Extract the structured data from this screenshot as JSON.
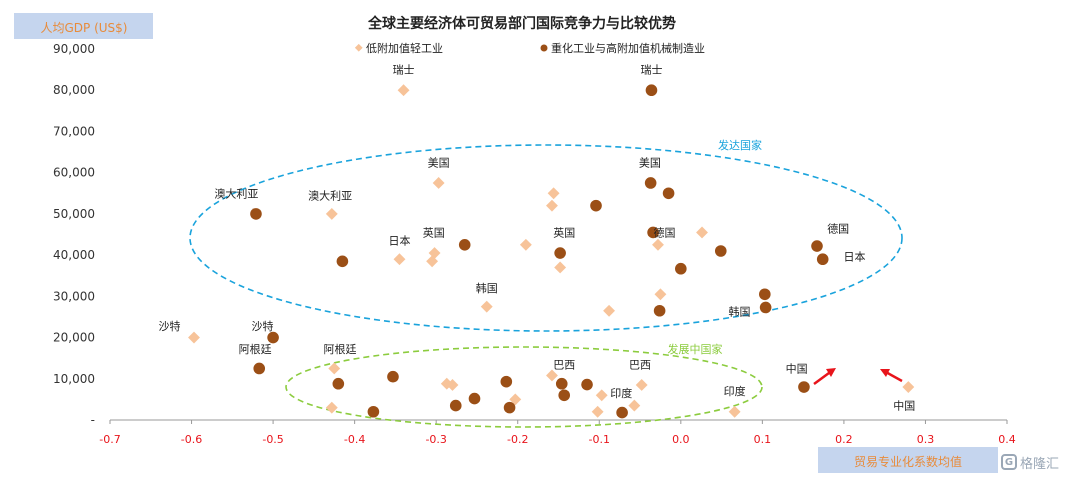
{
  "chart_data": {
    "type": "scatter",
    "title": "全球主要经济体可贸易部门国际竞争力与比较优势",
    "ylabel": "人均GDP (US$)",
    "xlabel": "贸易专业化系数均值",
    "xlim": [
      -0.7,
      0.4
    ],
    "ylim": [
      0,
      90000
    ],
    "x_ticks": [
      "-0.7",
      "-0.6",
      "-0.5",
      "-0.4",
      "-0.3",
      "-0.2",
      "-0.1",
      "0.0",
      "0.1",
      "0.2",
      "0.3",
      "0.4"
    ],
    "y_ticks": [
      "-",
      "10,000",
      "20,000",
      "30,000",
      "40,000",
      "50,000",
      "60,000",
      "70,000",
      "80,000",
      "90,000"
    ],
    "grid": false,
    "legend_position": "top-center",
    "colors": {
      "light": "#f7c399",
      "heavy": "#9b4f16",
      "developed": "#1aa3dc",
      "developing": "#8ccc3e",
      "arrow": "#e8141b",
      "x_tick": "#e8141b",
      "label_accent": "#e88b3a"
    },
    "series": [
      {
        "name": "低附加值轻工业",
        "marker": "diamond",
        "points": [
          {
            "x": -0.34,
            "y": 80000
          },
          {
            "x": -0.297,
            "y": 57500
          },
          {
            "x": -0.428,
            "y": 50000
          },
          {
            "x": -0.345,
            "y": 39000
          },
          {
            "x": -0.302,
            "y": 40500
          },
          {
            "x": -0.305,
            "y": 38500
          },
          {
            "x": -0.19,
            "y": 42500
          },
          {
            "x": -0.156,
            "y": 55000
          },
          {
            "x": -0.158,
            "y": 52000
          },
          {
            "x": -0.148,
            "y": 37000
          },
          {
            "x": -0.028,
            "y": 42500
          },
          {
            "x": 0.026,
            "y": 45500
          },
          {
            "x": -0.025,
            "y": 30500
          },
          {
            "x": -0.088,
            "y": 26500
          },
          {
            "x": -0.238,
            "y": 27500
          },
          {
            "x": -0.597,
            "y": 20000
          },
          {
            "x": -0.425,
            "y": 12500
          },
          {
            "x": -0.428,
            "y": 3000
          },
          {
            "x": -0.287,
            "y": 8800
          },
          {
            "x": -0.28,
            "y": 8500
          },
          {
            "x": -0.203,
            "y": 5000
          },
          {
            "x": -0.158,
            "y": 10800
          },
          {
            "x": -0.102,
            "y": 2000
          },
          {
            "x": -0.097,
            "y": 6000
          },
          {
            "x": -0.057,
            "y": 3500
          },
          {
            "x": -0.048,
            "y": 8500
          },
          {
            "x": 0.066,
            "y": 2000
          },
          {
            "x": 0.279,
            "y": 8000
          }
        ]
      },
      {
        "name": "重化工业与高附加值机械制造业",
        "marker": "circle",
        "points": [
          {
            "x": -0.036,
            "y": 80000
          },
          {
            "x": -0.037,
            "y": 57500
          },
          {
            "x": -0.015,
            "y": 55000
          },
          {
            "x": -0.104,
            "y": 52000
          },
          {
            "x": -0.521,
            "y": 50000
          },
          {
            "x": -0.034,
            "y": 45500
          },
          {
            "x": -0.265,
            "y": 42500
          },
          {
            "x": 0.049,
            "y": 41000
          },
          {
            "x": -0.148,
            "y": 40500
          },
          {
            "x": -0.415,
            "y": 38500
          },
          {
            "x": 0.0,
            "y": 36700
          },
          {
            "x": 0.167,
            "y": 42200
          },
          {
            "x": 0.174,
            "y": 39000
          },
          {
            "x": 0.103,
            "y": 30500
          },
          {
            "x": 0.104,
            "y": 27300
          },
          {
            "x": -0.026,
            "y": 26500
          },
          {
            "x": -0.5,
            "y": 20000
          },
          {
            "x": -0.517,
            "y": 12500
          },
          {
            "x": -0.42,
            "y": 8800
          },
          {
            "x": -0.353,
            "y": 10500
          },
          {
            "x": -0.377,
            "y": 2000
          },
          {
            "x": -0.276,
            "y": 3500
          },
          {
            "x": -0.253,
            "y": 5200
          },
          {
            "x": -0.214,
            "y": 9300
          },
          {
            "x": -0.21,
            "y": 3000
          },
          {
            "x": -0.146,
            "y": 8800
          },
          {
            "x": -0.143,
            "y": 6000
          },
          {
            "x": -0.115,
            "y": 8600
          },
          {
            "x": -0.072,
            "y": 1800
          },
          {
            "x": 0.151,
            "y": 8000
          }
        ]
      }
    ],
    "annotations": [
      {
        "text": "瑞士",
        "x": -0.34,
        "y": 85000
      },
      {
        "text": "瑞士",
        "x": -0.036,
        "y": 85000
      },
      {
        "text": "美国",
        "x": -0.297,
        "y": 62500
      },
      {
        "text": "美国",
        "x": -0.038,
        "y": 62500
      },
      {
        "text": "澳大利亚",
        "x": -0.545,
        "y": 55000
      },
      {
        "text": "澳大利亚",
        "x": -0.43,
        "y": 54500
      },
      {
        "text": "日本",
        "x": -0.345,
        "y": 43500
      },
      {
        "text": "英国",
        "x": -0.303,
        "y": 45500
      },
      {
        "text": "英国",
        "x": -0.143,
        "y": 45500
      },
      {
        "text": "德国",
        "x": -0.02,
        "y": 45500
      },
      {
        "text": "德国",
        "x": 0.193,
        "y": 46500
      },
      {
        "text": "日本",
        "x": 0.213,
        "y": 39700
      },
      {
        "text": "韩国",
        "x": -0.238,
        "y": 32000
      },
      {
        "text": "韩国",
        "x": 0.072,
        "y": 26300
      },
      {
        "text": "沙特",
        "x": -0.627,
        "y": 22800
      },
      {
        "text": "沙特",
        "x": -0.513,
        "y": 22800
      },
      {
        "text": "阿根廷",
        "x": -0.522,
        "y": 17200
      },
      {
        "text": "阿根廷",
        "x": -0.418,
        "y": 17200
      },
      {
        "text": "巴西",
        "x": -0.143,
        "y": 13500
      },
      {
        "text": "巴西",
        "x": -0.05,
        "y": 13500
      },
      {
        "text": "印度",
        "x": -0.073,
        "y": 6500
      },
      {
        "text": "印度",
        "x": 0.066,
        "y": 7000
      },
      {
        "text": "中国",
        "x": 0.142,
        "y": 12500
      },
      {
        "text": "中国",
        "x": 0.274,
        "y": 3500
      }
    ],
    "groups": [
      {
        "label": "发达国家",
        "kind": "developed"
      },
      {
        "label": "发展中国家",
        "kind": "developing"
      }
    ]
  },
  "watermark": "格隆汇"
}
